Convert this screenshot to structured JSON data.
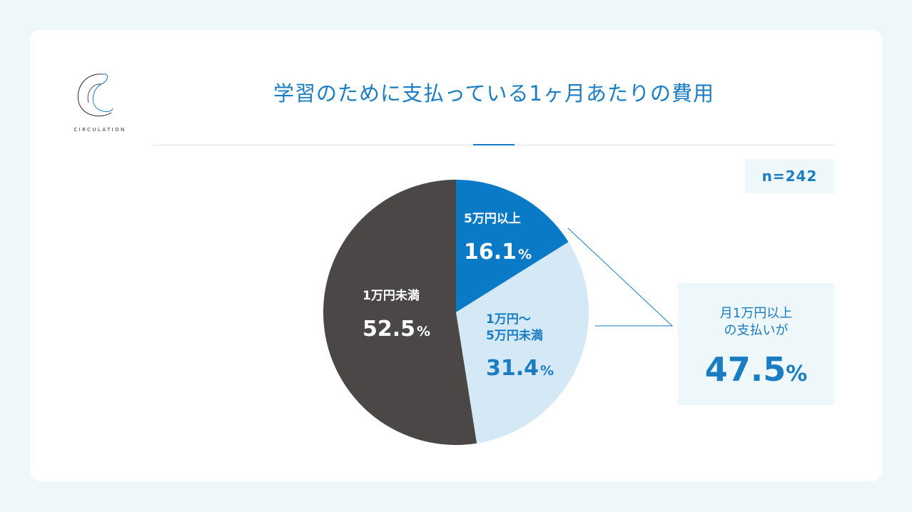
{
  "brand": {
    "logo_text": "CIRCULATION"
  },
  "title": "学習のために支払っている1ヶ月あたりの費用",
  "sample": "n=242",
  "colors": {
    "accent": "#1a7dc4",
    "light": "#d4e9f5",
    "dark": "#4a4746"
  },
  "chart_data": {
    "type": "pie",
    "start": "12 o'clock",
    "direction": "clockwise",
    "slices": [
      {
        "label": "5万円以上",
        "value": 16.1,
        "display": "16.1",
        "unit": "%",
        "color": "#0a7ac7"
      },
      {
        "label": "1万円〜\n5万円未満",
        "label_line1": "1万円〜",
        "label_line2": "5万円未満",
        "value": 31.4,
        "display": "31.4",
        "unit": "%",
        "color": "#d4e9f5"
      },
      {
        "label": "1万円未満",
        "value": 52.5,
        "display": "52.5",
        "unit": "%",
        "color": "#4a4746"
      }
    ]
  },
  "callout": {
    "line1": "月1万円以上",
    "line2": "の支払いが",
    "value": "47.5",
    "unit": "%"
  }
}
